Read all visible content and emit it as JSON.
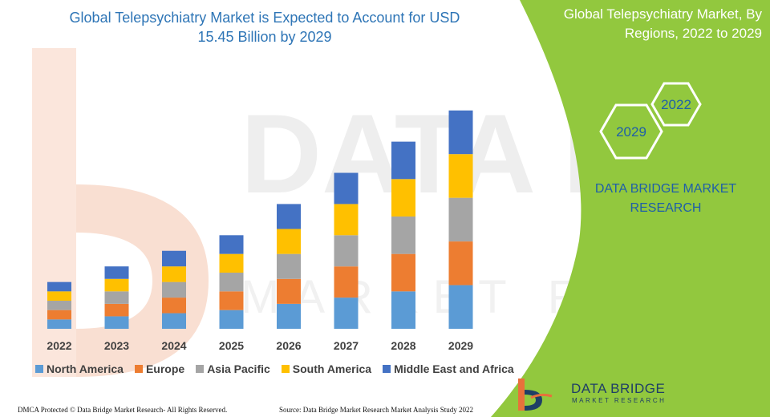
{
  "header": {
    "title_line1": "Global Telepsychiatry Market is Expected to Account for USD",
    "title_line2": "15.45 Billion by 2029"
  },
  "side_panel": {
    "title_line1": "Global Telepsychiatry Market, By",
    "title_line2": "Regions, 2022 to 2029",
    "hex_year_a": "2022",
    "hex_year_b": "2029",
    "brand_line1": "DATA BRIDGE MARKET",
    "brand_line2": "RESEARCH"
  },
  "footer": {
    "left": "DMCA Protected © Data Bridge Market Research- All Rights Reserved.",
    "right": "Source: Data Bridge Market Research Market Analysis Study 2022"
  },
  "logo": {
    "line1": "DATA BRIDGE",
    "line2": "MARKET RESEARCH"
  },
  "watermark": {
    "line1": "DATA BRIDGE",
    "line2": "MARKET RESEARCH"
  },
  "colors": {
    "panel_green": "#92c83e",
    "title_blue": "#2e75b6"
  },
  "chart_data": {
    "type": "bar",
    "stacked": true,
    "title": "Global Telepsychiatry Market is Expected to Account for USD 15.45 Billion by 2029",
    "categories": [
      "2022",
      "2023",
      "2024",
      "2025",
      "2026",
      "2027",
      "2028",
      "2029"
    ],
    "series": [
      {
        "name": "North America",
        "color": "#5b9bd5",
        "values": [
          12,
          16,
          20,
          24,
          32,
          40,
          48,
          56
        ]
      },
      {
        "name": "Europe",
        "color": "#ed7d31",
        "values": [
          12,
          16,
          20,
          24,
          32,
          40,
          48,
          56
        ]
      },
      {
        "name": "Asia Pacific",
        "color": "#a5a5a5",
        "values": [
          12,
          16,
          20,
          24,
          32,
          40,
          48,
          56
        ]
      },
      {
        "name": "South America",
        "color": "#ffc000",
        "values": [
          12,
          16,
          20,
          24,
          32,
          40,
          48,
          56
        ]
      },
      {
        "name": "Middle East and Africa",
        "color": "#4472c4",
        "values": [
          12,
          16,
          20,
          24,
          32,
          40,
          48,
          56
        ]
      }
    ],
    "ylim": [
      0,
      290
    ],
    "grid": false,
    "legend_position": "bottom"
  }
}
